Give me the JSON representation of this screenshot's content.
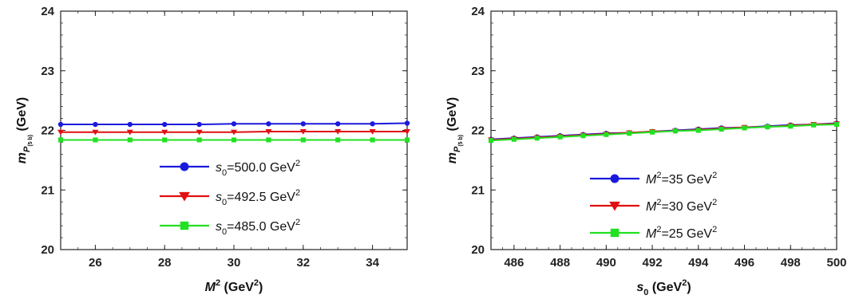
{
  "chart_data": [
    {
      "type": "line",
      "title": "",
      "xlabel_main": "M",
      "xlabel_sup": "2",
      "xlabel_unit": " (GeV",
      "xlabel_unit_sup": "2",
      "xlabel_close": ")",
      "ylabel_main": "m",
      "ylabel_sub": "P",
      "ylabel_subsub": "(5 b)",
      "ylabel_unit": " (GeV)",
      "xlim": [
        25,
        35
      ],
      "ylim": [
        20,
        24
      ],
      "xticks": [
        26,
        28,
        30,
        32,
        34
      ],
      "yticks": [
        20,
        21,
        22,
        23,
        24
      ],
      "legend_position": "center-bottom",
      "series": [
        {
          "name_sym": "s",
          "name_sub": "0",
          "name_rest": "=500.0 GeV",
          "name_sup": "2",
          "color": "#1a1adc",
          "marker": "circle",
          "x": [
            25,
            26,
            27,
            28,
            29,
            30,
            31,
            32,
            33,
            34,
            35
          ],
          "y": [
            22.1,
            22.1,
            22.1,
            22.1,
            22.1,
            22.11,
            22.11,
            22.11,
            22.11,
            22.11,
            22.12
          ]
        },
        {
          "name_sym": "s",
          "name_sub": "0",
          "name_rest": "=492.5 GeV",
          "name_sup": "2",
          "color": "#e01010",
          "marker": "triangle-down",
          "x": [
            25,
            26,
            27,
            28,
            29,
            30,
            31,
            32,
            33,
            34,
            35
          ],
          "y": [
            21.97,
            21.97,
            21.97,
            21.97,
            21.97,
            21.97,
            21.98,
            21.98,
            21.98,
            21.98,
            21.98
          ]
        },
        {
          "name_sym": "s",
          "name_sub": "0",
          "name_rest": "=485.0 GeV",
          "name_sup": "2",
          "color": "#22e022",
          "marker": "square",
          "x": [
            25,
            26,
            27,
            28,
            29,
            30,
            31,
            32,
            33,
            34,
            35
          ],
          "y": [
            21.84,
            21.84,
            21.84,
            21.84,
            21.84,
            21.84,
            21.84,
            21.84,
            21.84,
            21.84,
            21.84
          ]
        }
      ]
    },
    {
      "type": "line",
      "title": "",
      "xlabel_main": "s",
      "xlabel_sub": "0",
      "xlabel_unit": " (GeV",
      "xlabel_unit_sup": "2",
      "xlabel_close": ")",
      "ylabel_main": "m",
      "ylabel_sub": "P",
      "ylabel_subsub": "(5 b)",
      "ylabel_unit": " (GeV)",
      "xlim": [
        485,
        500
      ],
      "ylim": [
        20,
        24
      ],
      "xticks": [
        486,
        488,
        490,
        492,
        494,
        496,
        498,
        500
      ],
      "yticks": [
        20,
        21,
        22,
        23,
        24
      ],
      "legend_position": "center-bottom",
      "series": [
        {
          "name_sym": "M",
          "name_sup1": "2",
          "name_rest": "=35 GeV",
          "name_sup": "2",
          "color": "#1a1adc",
          "marker": "circle",
          "x": [
            485,
            486,
            487,
            488,
            489,
            490,
            491,
            492,
            493,
            494,
            495,
            496,
            497,
            498,
            499,
            500
          ],
          "y": [
            21.85,
            21.87,
            21.89,
            21.91,
            21.93,
            21.95,
            21.96,
            21.98,
            22.0,
            22.02,
            22.04,
            22.05,
            22.07,
            22.09,
            22.1,
            22.12
          ]
        },
        {
          "name_sym": "M",
          "name_sup1": "2",
          "name_rest": "=30 GeV",
          "name_sup": "2",
          "color": "#e01010",
          "marker": "triangle-down",
          "x": [
            485,
            486,
            487,
            488,
            489,
            490,
            491,
            492,
            493,
            494,
            495,
            496,
            497,
            498,
            499,
            500
          ],
          "y": [
            21.84,
            21.86,
            21.88,
            21.9,
            21.92,
            21.94,
            21.96,
            21.98,
            21.99,
            22.01,
            22.03,
            22.05,
            22.06,
            22.08,
            22.1,
            22.11
          ]
        },
        {
          "name_sym": "M",
          "name_sup1": "2",
          "name_rest": "=25 GeV",
          "name_sup": "2",
          "color": "#22e022",
          "marker": "square",
          "x": [
            485,
            486,
            487,
            488,
            489,
            490,
            491,
            492,
            493,
            494,
            495,
            496,
            497,
            498,
            499,
            500
          ],
          "y": [
            21.83,
            21.85,
            21.87,
            21.89,
            21.91,
            21.93,
            21.95,
            21.97,
            21.99,
            22.0,
            22.02,
            22.04,
            22.06,
            22.07,
            22.09,
            22.1
          ]
        }
      ]
    }
  ]
}
